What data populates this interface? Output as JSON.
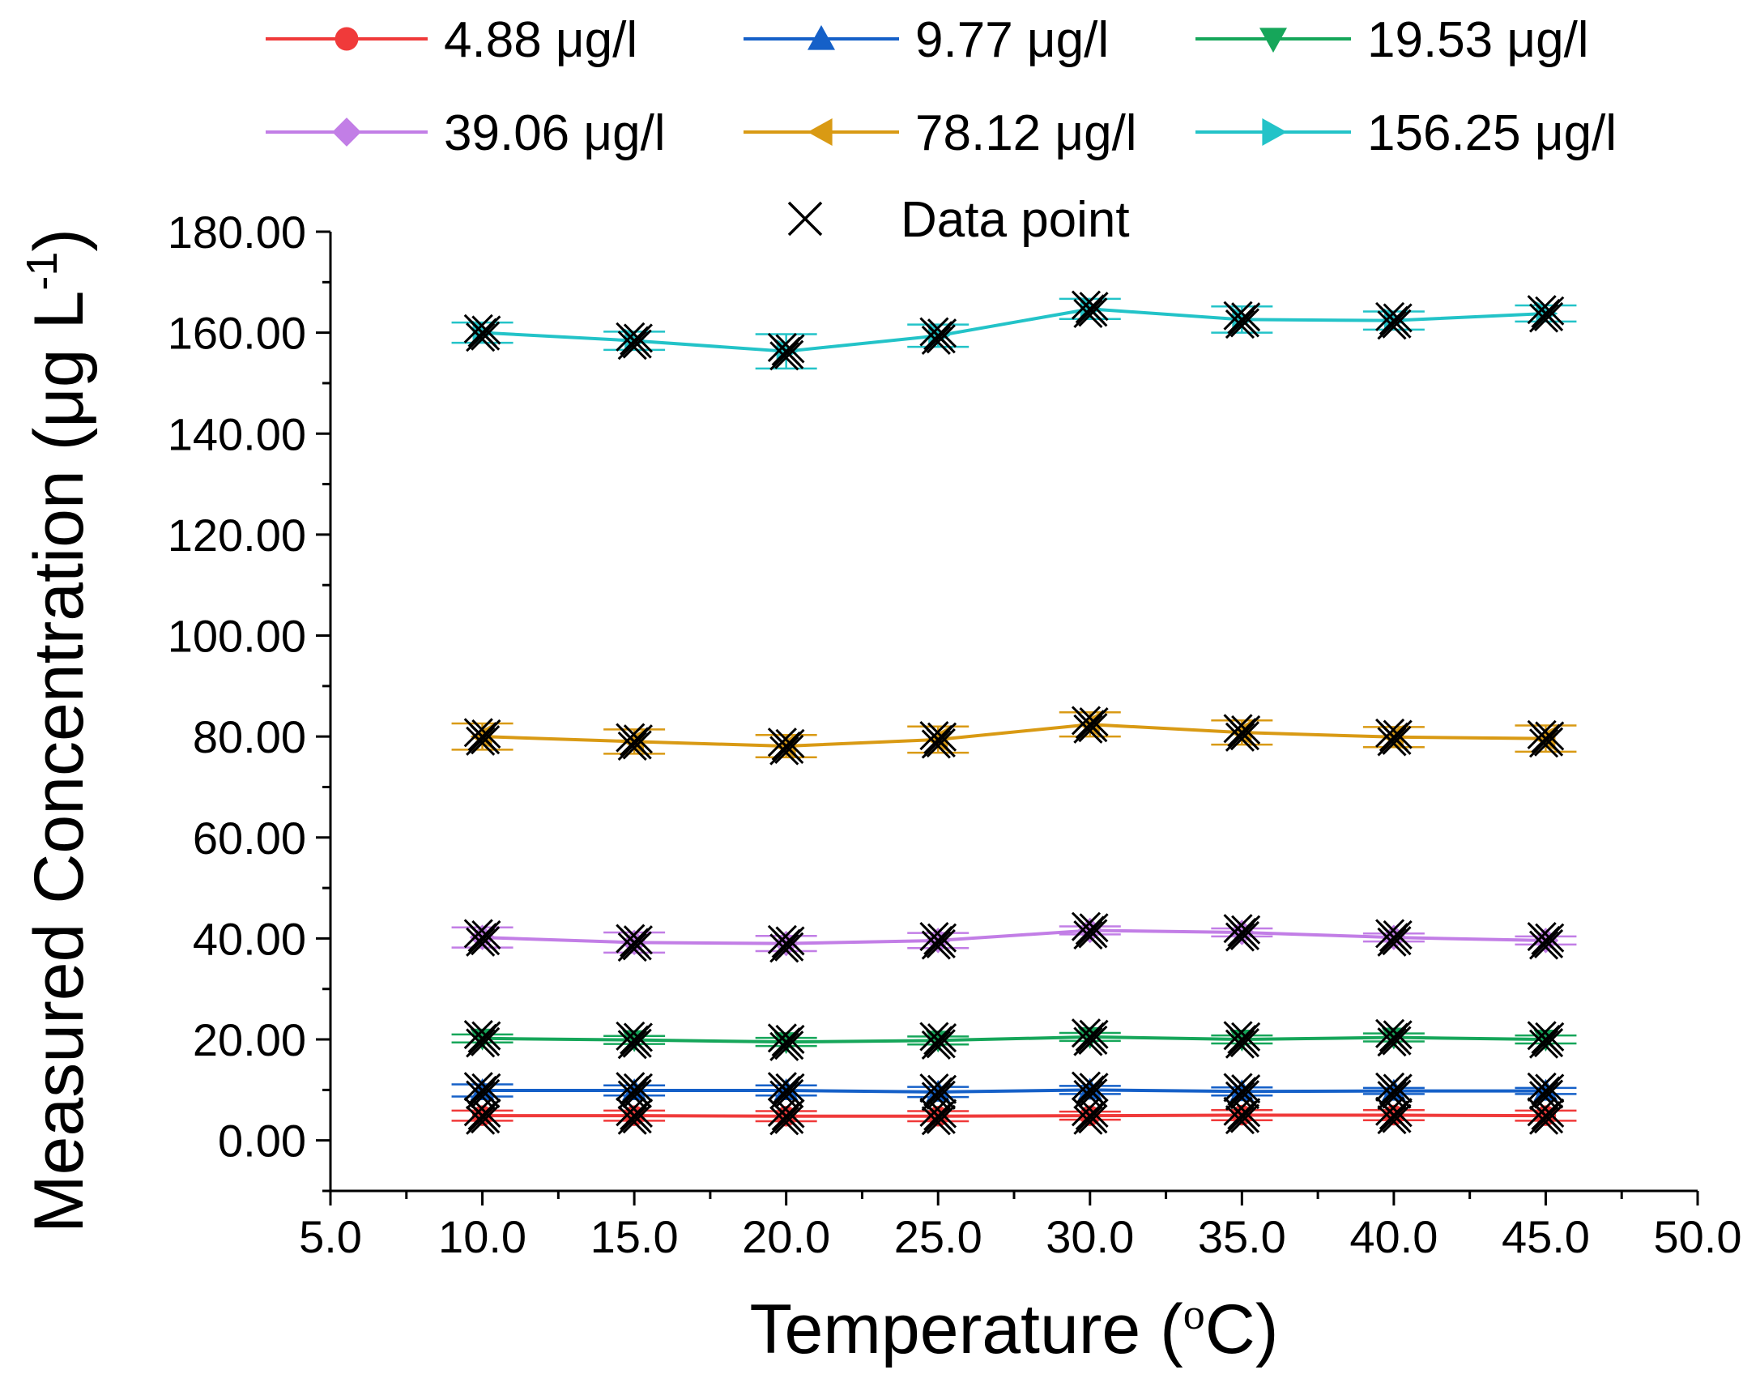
{
  "chart_data": {
    "type": "line",
    "title": "",
    "xlabel": "Temperature (",
    "xlabel_unit_sup": "o",
    "xlabel_unit": "C)",
    "ylabel": "Measured Concentration (μg L",
    "ylabel_sup": "-1",
    "ylabel_close": ")",
    "xlim": [
      5.0,
      50.0
    ],
    "ylim": [
      -10,
      180
    ],
    "x_ticks": [
      "5.0",
      "10.0",
      "15.0",
      "20.0",
      "25.0",
      "30.0",
      "35.0",
      "40.0",
      "45.0",
      "50.0"
    ],
    "x_tick_values": [
      5,
      10,
      15,
      20,
      25,
      30,
      35,
      40,
      45,
      50
    ],
    "y_ticks": [
      "0.00",
      "20.00",
      "40.00",
      "60.00",
      "80.00",
      "100.00",
      "120.00",
      "140.00",
      "160.00",
      "180.00"
    ],
    "y_tick_values": [
      0,
      20,
      40,
      60,
      80,
      100,
      120,
      140,
      160,
      180
    ],
    "x": [
      10,
      15,
      20,
      25,
      30,
      35,
      40,
      45
    ],
    "series": [
      {
        "name": "4.88 μg/l",
        "color": "#f03a3a",
        "marker": "circle",
        "values": [
          4.9,
          4.9,
          4.8,
          4.8,
          4.9,
          5.0,
          5.0,
          4.9
        ],
        "error": [
          1.0,
          1.0,
          1.0,
          1.0,
          0.8,
          1.0,
          1.0,
          1.0
        ]
      },
      {
        "name": "9.77 μg/l",
        "color": "#1560c8",
        "marker": "triangle-up",
        "values": [
          9.9,
          9.9,
          9.9,
          9.6,
          10.0,
          9.7,
          9.8,
          9.8
        ],
        "error": [
          1.2,
          1.0,
          1.0,
          1.0,
          0.8,
          0.8,
          0.6,
          0.6
        ]
      },
      {
        "name": "19.53 μg/l",
        "color": "#16a65a",
        "marker": "triangle-down",
        "values": [
          20.2,
          19.9,
          19.5,
          19.8,
          20.5,
          20.0,
          20.4,
          20.0
        ],
        "error": [
          0.8,
          0.8,
          0.8,
          0.8,
          0.8,
          0.8,
          0.8,
          0.8
        ]
      },
      {
        "name": "39.06 μg/l",
        "color": "#c27ee6",
        "marker": "diamond",
        "values": [
          40.2,
          39.2,
          39.0,
          39.6,
          41.6,
          41.2,
          40.2,
          39.6
        ],
        "error": [
          2.0,
          2.0,
          1.5,
          1.5,
          0.8,
          0.8,
          0.8,
          0.8
        ]
      },
      {
        "name": "78.12 μg/l",
        "color": "#d99a14",
        "marker": "triangle-left",
        "values": [
          80.0,
          79.0,
          78.1,
          79.4,
          82.4,
          80.8,
          79.9,
          79.6
        ],
        "error": [
          2.6,
          2.4,
          2.2,
          2.6,
          2.4,
          2.4,
          2.0,
          2.6
        ]
      },
      {
        "name": "156.25 μg/l",
        "color": "#23c3c8",
        "marker": "triangle-right",
        "values": [
          160.0,
          158.4,
          156.3,
          159.4,
          164.7,
          162.6,
          162.4,
          163.8
        ],
        "error": [
          2.0,
          1.8,
          3.4,
          2.2,
          2.0,
          2.6,
          1.8,
          1.6
        ]
      }
    ],
    "data_point_label": "Data point",
    "data_point_marker": "x",
    "legend_position": "top"
  }
}
